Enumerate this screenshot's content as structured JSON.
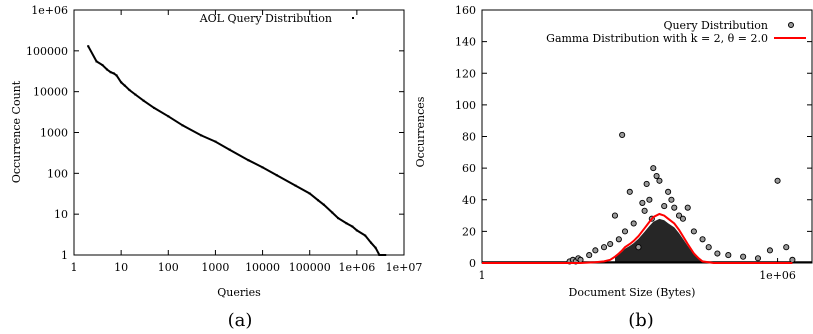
{
  "chart_data": [
    {
      "type": "scatter",
      "caption": "(a)",
      "xlabel": "Queries",
      "ylabel": "Occurrence Count",
      "xscale": "log",
      "yscale": "log",
      "xlim": [
        1,
        10000000
      ],
      "ylim": [
        1,
        1000000
      ],
      "xticks": [
        "1",
        "10",
        "100",
        "1000",
        "10000",
        "100000",
        "1e+06",
        "1e+07"
      ],
      "yticks": [
        "1",
        "10",
        "100",
        "1000",
        "10000",
        "100000",
        "1e+06"
      ],
      "legend_position": "top-right",
      "series": [
        {
          "name": "AOL Query Distribution",
          "color": "#000000",
          "marker": "dot",
          "x": [
            2,
            3,
            4,
            5,
            6,
            7,
            8,
            10,
            12,
            15,
            20,
            30,
            50,
            100,
            200,
            500,
            1000,
            2000,
            5000,
            10000,
            20000,
            50000,
            100000,
            150000,
            200000,
            300000,
            400000,
            600000,
            800000,
            1000000,
            1500000,
            2000000,
            2500000,
            3000000,
            3500000,
            4000000
          ],
          "y": [
            130000,
            55000,
            45000,
            35000,
            30000,
            28000,
            25000,
            17000,
            14000,
            11000,
            8500,
            6000,
            4000,
            2500,
            1500,
            850,
            600,
            380,
            210,
            140,
            90,
            50,
            32,
            22,
            17,
            11,
            8,
            6,
            5,
            4,
            3,
            2,
            1.5,
            1,
            1,
            1
          ]
        }
      ]
    },
    {
      "type": "scatter",
      "caption": "(b)",
      "xlabel": "Document Size (Bytes)",
      "ylabel": "Occurrences",
      "xscale": "log",
      "ylim": [
        0,
        160
      ],
      "xticks": [
        "1",
        "1e+06"
      ],
      "yticks": [
        "0",
        "20",
        "40",
        "60",
        "80",
        "100",
        "120",
        "140",
        "160"
      ],
      "legend_position": "top-right",
      "series": [
        {
          "name": "Query Distribution",
          "color": "#000000",
          "marker": "open-circle",
          "x": [
            60,
            70,
            80,
            90,
            100,
            150,
            200,
            300,
            400,
            500,
            600,
            700,
            800,
            1000,
            1200,
            1500,
            1800,
            2000,
            2200,
            2500,
            2800,
            3000,
            3500,
            4000,
            5000,
            6000,
            7000,
            8000,
            10000,
            12000,
            15000,
            20000,
            30000,
            40000,
            60000,
            100000,
            200000,
            400000,
            700000,
            1000000,
            1500000,
            2000000
          ],
          "y": [
            1,
            2,
            1,
            3,
            2,
            5,
            8,
            10,
            12,
            30,
            15,
            81,
            20,
            45,
            25,
            10,
            38,
            33,
            50,
            40,
            28,
            60,
            55,
            52,
            36,
            45,
            40,
            35,
            30,
            28,
            35,
            20,
            15,
            10,
            6,
            5,
            4,
            3,
            8,
            52,
            10,
            2
          ]
        },
        {
          "name": "Gamma Distribution with k = 2, θ = 2.0",
          "color": "#ff0000",
          "marker": "line",
          "x": [
            1,
            100,
            200,
            300,
            400,
            500,
            600,
            700,
            800,
            1000,
            1200,
            1500,
            2000,
            2500,
            3000,
            4000,
            5000,
            6000,
            8000,
            10000,
            12000,
            15000,
            20000,
            25000,
            30000,
            50000,
            100000,
            1000000,
            2000000
          ],
          "y": [
            0,
            0,
            0.5,
            1,
            2,
            4,
            6,
            8,
            10,
            12,
            14,
            17,
            22,
            26,
            29,
            31,
            30,
            28,
            25,
            21,
            17,
            12,
            6,
            3,
            1,
            0,
            0,
            0,
            0
          ]
        }
      ]
    }
  ]
}
